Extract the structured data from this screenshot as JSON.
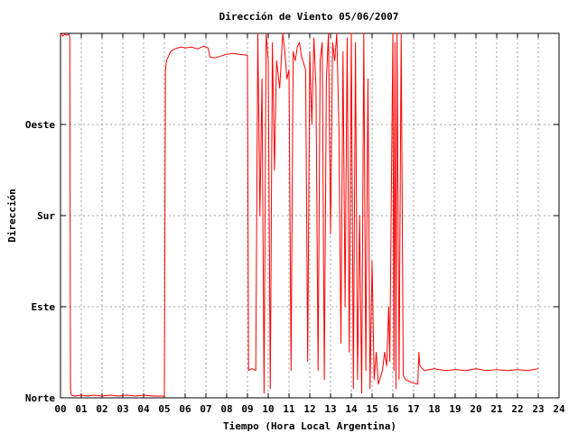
{
  "chart_data": {
    "type": "line",
    "title": "Dirección de Viento 05/06/2007",
    "xlabel": "Tiempo (Hora Local Argentina)",
    "ylabel": "Dirección",
    "xlim": [
      0,
      24
    ],
    "ylim": [
      0,
      4
    ],
    "x_ticks": [
      "00",
      "01",
      "02",
      "03",
      "04",
      "05",
      "06",
      "07",
      "08",
      "09",
      "10",
      "11",
      "12",
      "13",
      "14",
      "15",
      "16",
      "17",
      "18",
      "19",
      "20",
      "21",
      "22",
      "23",
      "24"
    ],
    "y_ticks": [
      {
        "value": 0,
        "label": "Norte"
      },
      {
        "value": 1,
        "label": "Este"
      },
      {
        "value": 2,
        "label": "Sur"
      },
      {
        "value": 3,
        "label": "Oeste"
      }
    ],
    "grid": true,
    "series": [
      {
        "color": "#ff0000",
        "points": [
          [
            0.0,
            3.98
          ],
          [
            0.05,
            4.0
          ],
          [
            0.1,
            3.97
          ],
          [
            0.2,
            3.99
          ],
          [
            0.3,
            3.98
          ],
          [
            0.4,
            3.99
          ],
          [
            0.45,
            3.96
          ],
          [
            0.48,
            0.1
          ],
          [
            0.52,
            0.03
          ],
          [
            0.7,
            0.02
          ],
          [
            1.0,
            0.03
          ],
          [
            1.3,
            0.02
          ],
          [
            1.6,
            0.03
          ],
          [
            2.0,
            0.02
          ],
          [
            2.4,
            0.03
          ],
          [
            2.8,
            0.02
          ],
          [
            3.2,
            0.03
          ],
          [
            3.6,
            0.02
          ],
          [
            4.0,
            0.03
          ],
          [
            4.5,
            0.02
          ],
          [
            5.0,
            0.02
          ],
          [
            5.05,
            3.6
          ],
          [
            5.1,
            3.7
          ],
          [
            5.2,
            3.75
          ],
          [
            5.3,
            3.8
          ],
          [
            5.5,
            3.83
          ],
          [
            5.8,
            3.85
          ],
          [
            6.0,
            3.84
          ],
          [
            6.3,
            3.85
          ],
          [
            6.6,
            3.83
          ],
          [
            6.9,
            3.86
          ],
          [
            7.1,
            3.84
          ],
          [
            7.2,
            3.74
          ],
          [
            7.4,
            3.73
          ],
          [
            7.7,
            3.75
          ],
          [
            8.0,
            3.77
          ],
          [
            8.3,
            3.78
          ],
          [
            8.6,
            3.77
          ],
          [
            9.0,
            3.76
          ],
          [
            9.05,
            0.3
          ],
          [
            9.2,
            0.32
          ],
          [
            9.4,
            0.3
          ],
          [
            9.5,
            4.0
          ],
          [
            9.6,
            2.0
          ],
          [
            9.7,
            3.5
          ],
          [
            9.8,
            0.05
          ],
          [
            9.9,
            4.0
          ],
          [
            10.0,
            3.7
          ],
          [
            10.1,
            0.1
          ],
          [
            10.2,
            3.9
          ],
          [
            10.3,
            2.5
          ],
          [
            10.4,
            3.7
          ],
          [
            10.55,
            3.4
          ],
          [
            10.7,
            4.0
          ],
          [
            10.8,
            3.8
          ],
          [
            10.9,
            3.5
          ],
          [
            11.0,
            3.6
          ],
          [
            11.1,
            0.3
          ],
          [
            11.2,
            3.8
          ],
          [
            11.3,
            3.7
          ],
          [
            11.4,
            3.85
          ],
          [
            11.5,
            3.9
          ],
          [
            11.6,
            3.75
          ],
          [
            11.8,
            3.6
          ],
          [
            11.9,
            0.4
          ],
          [
            12.0,
            3.8
          ],
          [
            12.1,
            3.0
          ],
          [
            12.2,
            3.95
          ],
          [
            12.3,
            3.4
          ],
          [
            12.4,
            0.3
          ],
          [
            12.5,
            3.7
          ],
          [
            12.6,
            3.9
          ],
          [
            12.7,
            0.2
          ],
          [
            12.8,
            3.5
          ],
          [
            12.9,
            4.0
          ],
          [
            13.0,
            1.8
          ],
          [
            13.1,
            3.9
          ],
          [
            13.2,
            3.7
          ],
          [
            13.3,
            4.0
          ],
          [
            13.4,
            3.0
          ],
          [
            13.5,
            0.6
          ],
          [
            13.6,
            3.8
          ],
          [
            13.7,
            1.0
          ],
          [
            13.8,
            3.95
          ],
          [
            13.9,
            0.5
          ],
          [
            14.0,
            4.0
          ],
          [
            14.1,
            0.1
          ],
          [
            14.2,
            3.9
          ],
          [
            14.3,
            0.2
          ],
          [
            14.4,
            2.0
          ],
          [
            14.5,
            0.05
          ],
          [
            14.6,
            4.0
          ],
          [
            14.7,
            0.3
          ],
          [
            14.8,
            3.5
          ],
          [
            14.9,
            0.1
          ],
          [
            15.0,
            1.5
          ],
          [
            15.1,
            0.2
          ],
          [
            15.2,
            0.5
          ],
          [
            15.3,
            0.15
          ],
          [
            15.5,
            0.3
          ],
          [
            15.6,
            0.5
          ],
          [
            15.7,
            0.35
          ],
          [
            15.8,
            1.0
          ],
          [
            15.85,
            0.4
          ],
          [
            16.0,
            4.0
          ],
          [
            16.05,
            0.3
          ],
          [
            16.1,
            3.9
          ],
          [
            16.15,
            0.1
          ],
          [
            16.2,
            4.0
          ],
          [
            16.3,
            0.2
          ],
          [
            16.4,
            4.0
          ],
          [
            16.5,
            0.25
          ],
          [
            16.6,
            0.2
          ],
          [
            16.8,
            0.18
          ],
          [
            17.0,
            0.16
          ],
          [
            17.2,
            0.15
          ],
          [
            17.25,
            0.5
          ],
          [
            17.3,
            0.35
          ],
          [
            17.5,
            0.3
          ],
          [
            18.0,
            0.32
          ],
          [
            18.5,
            0.3
          ],
          [
            19.0,
            0.31
          ],
          [
            19.5,
            0.3
          ],
          [
            20.0,
            0.32
          ],
          [
            20.5,
            0.3
          ],
          [
            21.0,
            0.31
          ],
          [
            21.5,
            0.3
          ],
          [
            22.0,
            0.31
          ],
          [
            22.5,
            0.3
          ],
          [
            23.0,
            0.32
          ]
        ]
      }
    ]
  }
}
